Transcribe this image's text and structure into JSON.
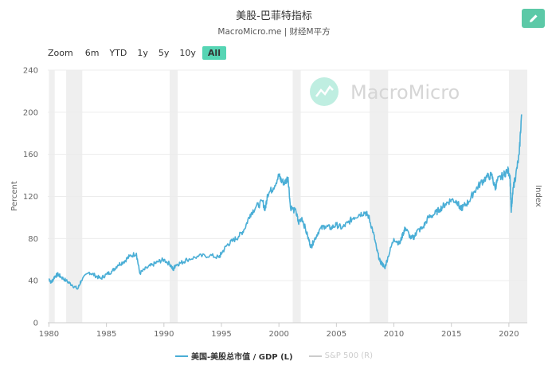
{
  "header": {
    "title": "美股-巴菲特指标",
    "subtitle": "MacroMicro.me | 财经M平方"
  },
  "toolbar": {
    "zoom_label": "Zoom",
    "ranges": [
      "6m",
      "YTD",
      "1y",
      "5y",
      "10y",
      "All"
    ],
    "active_range": "All",
    "edit_icon": "pencil-icon"
  },
  "watermark": {
    "text": "MacroMicro",
    "icon": "macromicro-logo-icon"
  },
  "colors": {
    "series": "#4aaed6",
    "hidden_series": "#cccccc",
    "recession_band": "#efefef",
    "accent": "#56d5b4"
  },
  "chart_data": {
    "type": "line",
    "xlabel": "",
    "ylabel": "Percent",
    "y2label": "Index",
    "xlim": [
      1979.9,
      2021.6
    ],
    "ylim": [
      0,
      240
    ],
    "x_ticks": [
      1980,
      1985,
      1990,
      1995,
      2000,
      2005,
      2010,
      2015,
      2020
    ],
    "y_ticks": [
      0,
      40,
      80,
      120,
      160,
      200,
      240
    ],
    "grid": true,
    "legend_position": "bottom-center",
    "recession_bands": [
      [
        1980.0,
        1980.5
      ],
      [
        1981.5,
        1982.9
      ],
      [
        1990.5,
        1991.2
      ],
      [
        2001.2,
        2001.9
      ],
      [
        2007.9,
        2009.5
      ],
      [
        2020.0,
        2021.6
      ]
    ],
    "series": [
      {
        "name": "美国-美股总市值 / GDP (L)",
        "visible": true,
        "x": [
          1980.0,
          1980.2,
          1980.5,
          1980.8,
          1981.0,
          1981.5,
          1982.0,
          1982.5,
          1982.8,
          1983.5,
          1984.0,
          1984.5,
          1985.0,
          1985.5,
          1986.0,
          1986.5,
          1987.0,
          1987.6,
          1987.9,
          1988.5,
          1989.0,
          1989.5,
          1990.0,
          1990.6,
          1990.8,
          1991.0,
          1991.5,
          1992.0,
          1993.0,
          1994.0,
          1994.8,
          1995.0,
          1995.5,
          1996.0,
          1996.5,
          1997.0,
          1997.5,
          1998.0,
          1998.6,
          1998.8,
          1999.0,
          1999.5,
          2000.0,
          2000.2,
          2000.5,
          2000.8,
          2001.0,
          2001.5,
          2001.7,
          2002.0,
          2002.5,
          2002.8,
          2003.0,
          2003.5,
          2004.0,
          2004.5,
          2005.0,
          2005.5,
          2006.0,
          2006.5,
          2007.0,
          2007.5,
          2007.8,
          2008.2,
          2008.5,
          2008.8,
          2009.0,
          2009.2,
          2009.5,
          2010.0,
          2010.5,
          2010.8,
          2011.0,
          2011.5,
          2011.8,
          2012.0,
          2012.5,
          2013.0,
          2013.5,
          2014.0,
          2014.5,
          2015.0,
          2015.5,
          2015.8,
          2016.0,
          2016.5,
          2017.0,
          2017.5,
          2018.0,
          2018.5,
          2018.8,
          2019.0,
          2019.5,
          2019.9,
          2020.1,
          2020.2,
          2020.4,
          2020.6,
          2020.9,
          2021.1
        ],
        "y": [
          42,
          38,
          44,
          46,
          44,
          40,
          36,
          32,
          40,
          48,
          45,
          42,
          46,
          49,
          55,
          58,
          63,
          66,
          47,
          52,
          55,
          58,
          60,
          55,
          50,
          55,
          57,
          60,
          63,
          64,
          62,
          66,
          74,
          78,
          82,
          89,
          103,
          110,
          115,
          107,
          122,
          128,
          140,
          135,
          133,
          138,
          110,
          105,
          95,
          100,
          82,
          72,
          77,
          88,
          92,
          90,
          93,
          90,
          95,
          100,
          103,
          105,
          101,
          86,
          70,
          58,
          56,
          52,
          63,
          80,
          75,
          85,
          90,
          80,
          82,
          87,
          90,
          100,
          103,
          108,
          113,
          117,
          115,
          108,
          110,
          115,
          125,
          132,
          138,
          140,
          128,
          135,
          140,
          145,
          140,
          105,
          130,
          140,
          160,
          198
        ]
      },
      {
        "name": "S&P 500 (R)",
        "visible": false,
        "x": [],
        "y": []
      }
    ]
  }
}
